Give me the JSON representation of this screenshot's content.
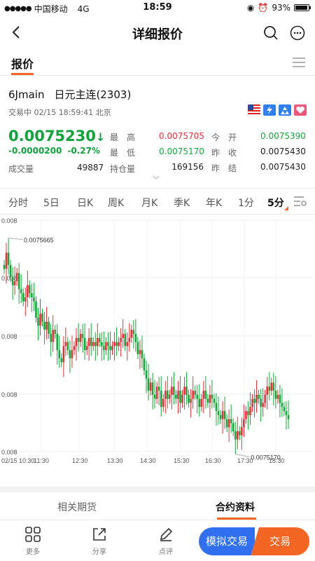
{
  "status_bar": {
    "carrier": "中国移动",
    "network": "4G",
    "time": "18:59",
    "battery": "93%"
  },
  "nav": {
    "title": "详细报价"
  },
  "tabs": {
    "quote": "报价"
  },
  "quote": {
    "code": "6Jmain",
    "name": "日元主连(2303)",
    "status": "交易中 02/15 18:59:41 北京",
    "last": "0.0075230",
    "arrow": "↓",
    "change": "-0.0000200",
    "change_pct": "-0.27%",
    "volume_label": "成交量",
    "volume": "49887",
    "open_interest_label": "持仓量",
    "open_interest": "169156",
    "high_label": "最高",
    "high": "0.0075705",
    "low_label": "最低",
    "low": "0.0075170",
    "open_label": "今开",
    "open": "0.0075390",
    "prev_close_label": "昨收",
    "prev_close": "0.0075430",
    "prev_settle_label": "昨结",
    "prev_settle": "0.0075430"
  },
  "periods": [
    "分时",
    "5日",
    "日K",
    "周K",
    "月K",
    "季K",
    "年K",
    "1分",
    "5分"
  ],
  "active_period": "5分",
  "chart_data": {
    "type": "candlestick",
    "y_tick_labels": [
      "0.008",
      "0.008",
      "0.008",
      "0.008",
      "0.008"
    ],
    "x_tick_labels": [
      "02/15 10:30",
      "11:30",
      "12:30",
      "13:30",
      "14:30",
      "15:30",
      "16:30",
      "17:30",
      "18:30"
    ],
    "max_label": "0.0075665",
    "min_label": "0.0075170",
    "ylim": [
      0.007515,
      0.007572
    ],
    "up_color": "#e8303a",
    "down_color": "#12a83b",
    "closes": [
      0.00756,
      0.007564,
      0.007561,
      0.007558,
      0.007556,
      0.007557,
      0.007559,
      0.007555,
      0.007554,
      0.007552,
      0.007553,
      0.007556,
      0.007554,
      0.007553,
      0.007552,
      0.007548,
      0.007546,
      0.007549,
      0.007547,
      0.007545,
      0.007547,
      0.007544,
      0.007542,
      0.007545,
      0.007544,
      0.00754,
      0.007538,
      0.007537,
      0.007541,
      0.007542,
      0.00754,
      0.007538,
      0.00754,
      0.007541,
      0.007543,
      0.007542,
      0.007544,
      0.007543,
      0.00754,
      0.007541,
      0.007543,
      0.007541,
      0.007542,
      0.007541,
      0.007543,
      0.007542,
      0.007541,
      0.00754,
      0.007542,
      0.007541,
      0.00754,
      0.007541,
      0.007542,
      0.007541,
      0.007542,
      0.007543,
      0.007544,
      0.007541,
      0.007542,
      0.007543,
      0.007545,
      0.007544,
      0.007542,
      0.007539,
      0.00754,
      0.007538,
      0.007535,
      0.007533,
      0.00753,
      0.007532,
      0.007529,
      0.007528,
      0.007531,
      0.00753,
      0.007526,
      0.007528,
      0.00753,
      0.007528,
      0.007529,
      0.007531,
      0.007529,
      0.007528,
      0.00753,
      0.007527,
      0.007529,
      0.007531,
      0.007529,
      0.007527,
      0.007528,
      0.00753,
      0.007529,
      0.007528,
      0.007526,
      0.007528,
      0.00753,
      0.007528,
      0.007527,
      0.007529,
      0.007528,
      0.007527,
      0.007525,
      0.007524,
      0.007523,
      0.007525,
      0.007523,
      0.007521,
      0.007523,
      0.007522,
      0.00752,
      0.007518,
      0.00752,
      0.007519,
      0.007521,
      0.007523,
      0.007525,
      0.007524,
      0.007526,
      0.007528,
      0.007527,
      0.007529,
      0.007528,
      0.007526,
      0.007527,
      0.007529,
      0.007531,
      0.00753,
      0.007532,
      0.00753,
      0.007528,
      0.007529,
      0.007527,
      0.007526,
      0.007525,
      0.007524,
      0.007523
    ]
  },
  "bottom_tabs": {
    "related": "相关期货",
    "contract": "合约资料"
  },
  "toolbar": {
    "more": "更多",
    "share": "分享",
    "comment": "点评",
    "sim_trade": "模拟交易",
    "trade": "交易"
  },
  "colors": {
    "up": "#e8303a",
    "down": "#12a83b",
    "accent": "#f26522",
    "blue": "#2f6ff0"
  }
}
